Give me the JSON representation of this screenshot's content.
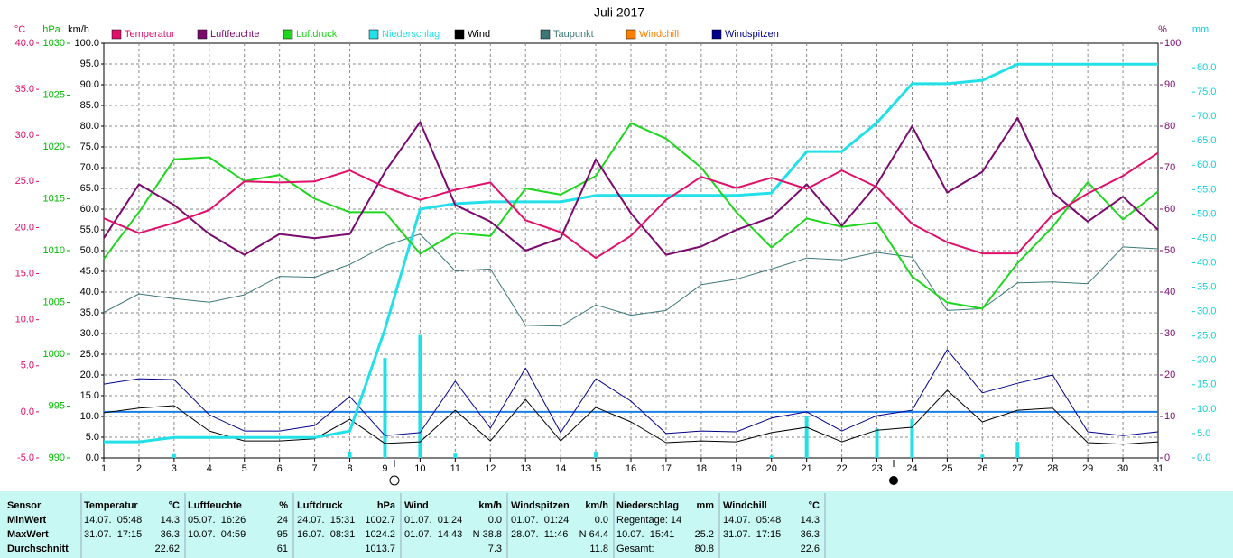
{
  "chart_data": {
    "type": "line",
    "title": "Juli 2017",
    "x": [
      1,
      2,
      3,
      4,
      5,
      6,
      7,
      8,
      9,
      10,
      11,
      12,
      13,
      14,
      15,
      16,
      17,
      18,
      19,
      20,
      21,
      22,
      23,
      24,
      25,
      26,
      27,
      28,
      29,
      30,
      31
    ],
    "xlim": [
      1,
      31
    ],
    "xticks": [
      1,
      2,
      3,
      4,
      5,
      6,
      7,
      8,
      9,
      10,
      11,
      12,
      13,
      14,
      15,
      16,
      17,
      18,
      19,
      20,
      21,
      22,
      23,
      24,
      25,
      26,
      27,
      28,
      29,
      30,
      31
    ],
    "grid": true,
    "axes": {
      "temp": {
        "unit": "°C",
        "color": "#e0106a",
        "side": "left",
        "lim": [
          -5,
          40
        ],
        "ticks": [
          {
            "value": -5,
            "label": "-5.0"
          },
          {
            "value": 0,
            "label": "0.0"
          },
          {
            "value": 5,
            "label": "5.0"
          },
          {
            "value": 10,
            "label": "10.0"
          },
          {
            "value": 15,
            "label": "15.0"
          },
          {
            "value": 20,
            "label": "20.0"
          },
          {
            "value": 25,
            "label": "25.0"
          },
          {
            "value": 30,
            "label": "30.0"
          },
          {
            "value": 35,
            "label": "35.0"
          },
          {
            "value": 40,
            "label": "40.0"
          }
        ]
      },
      "hpa": {
        "unit": "hPa",
        "color": "#00bb00",
        "side": "left",
        "lim": [
          990,
          1030
        ],
        "ticks": [
          990,
          995,
          1000,
          1005,
          1010,
          1015,
          1020,
          1025,
          1030
        ]
      },
      "kmh": {
        "unit": "km/h",
        "color": "#000000",
        "side": "left",
        "lim": [
          0,
          100
        ],
        "ticks": [
          {
            "value": 0,
            "label": "0.0"
          },
          {
            "value": 5,
            "label": "5.0"
          },
          {
            "value": 10,
            "label": "10.0"
          },
          {
            "value": 15,
            "label": "15.0"
          },
          {
            "value": 20,
            "label": "20.0"
          },
          {
            "value": 25,
            "label": "25.0"
          },
          {
            "value": 30,
            "label": "30.0"
          },
          {
            "value": 35,
            "label": "35.0"
          },
          {
            "value": 40,
            "label": "40.0"
          },
          {
            "value": 45,
            "label": "45.0"
          },
          {
            "value": 50,
            "label": "50.0"
          },
          {
            "value": 55,
            "label": "55.0"
          },
          {
            "value": 60,
            "label": "60.0"
          },
          {
            "value": 65,
            "label": "65.0"
          },
          {
            "value": 70,
            "label": "70.0"
          },
          {
            "value": 75,
            "label": "75.0"
          },
          {
            "value": 80,
            "label": "80.0"
          },
          {
            "value": 85,
            "label": "85.0"
          },
          {
            "value": 90,
            "label": "90.0"
          },
          {
            "value": 95,
            "label": "95.0"
          },
          {
            "value": 100,
            "label": "100.0"
          }
        ]
      },
      "pct": {
        "unit": "%",
        "color": "#7a0a6e",
        "side": "right",
        "lim": [
          0,
          100
        ],
        "ticks": [
          0,
          10,
          20,
          30,
          40,
          50,
          60,
          70,
          80,
          90,
          100
        ]
      },
      "mm": {
        "unit": "mm",
        "color": "#10d0d8",
        "side": "right",
        "lim": [
          0,
          85
        ],
        "ticks": [
          {
            "value": 0,
            "label": "0.0"
          },
          {
            "value": 5,
            "label": "5.0"
          },
          {
            "value": 10,
            "label": "10.0"
          },
          {
            "value": 15,
            "label": "15.0"
          },
          {
            "value": 20,
            "label": "20.0"
          },
          {
            "value": 25,
            "label": "25.0"
          },
          {
            "value": 30,
            "label": "30.0"
          },
          {
            "value": 35,
            "label": "35.0"
          },
          {
            "value": 40,
            "label": "40.0"
          },
          {
            "value": 45,
            "label": "45.0"
          },
          {
            "value": 50,
            "label": "50.0"
          },
          {
            "value": 55,
            "label": "55.0"
          },
          {
            "value": 60,
            "label": "60.0"
          },
          {
            "value": 65,
            "label": "65.0"
          },
          {
            "value": 70,
            "label": "70.0"
          },
          {
            "value": 75,
            "label": "75.0"
          },
          {
            "value": 80,
            "label": "80.0"
          }
        ]
      }
    },
    "reference_line": {
      "axis": "temp",
      "value": 0,
      "color": "#1a7fe8"
    },
    "precip_daily": {
      "axis": "mm",
      "color": "#22e0e8",
      "values": [
        0,
        0,
        0.8,
        0,
        0,
        0,
        0,
        1.3,
        20.5,
        25.2,
        0.9,
        0,
        0,
        0,
        1.3,
        0,
        0,
        0,
        0,
        0.5,
        8.5,
        0,
        6,
        8,
        0,
        0.7,
        3.3,
        0,
        0,
        0,
        0
      ]
    },
    "series": [
      {
        "name": "Temperatur",
        "color": "#e0106a",
        "axis": "temp",
        "width": 2,
        "values": [
          21.0,
          19.4,
          20.5,
          21.9,
          25.0,
          24.9,
          25.0,
          26.2,
          24.4,
          23.0,
          24.1,
          24.9,
          20.8,
          19.5,
          16.7,
          19.1,
          23.0,
          25.5,
          24.3,
          25.4,
          24.2,
          26.2,
          24.4,
          20.4,
          18.4,
          17.2,
          17.2,
          21.4,
          23.7,
          25.6,
          28.1
        ]
      },
      {
        "name": "Luftfeuchte",
        "color": "#7a0a6e",
        "axis": "pct",
        "width": 2,
        "values": [
          53,
          66,
          61,
          54,
          49,
          54,
          53,
          54,
          69,
          81,
          61,
          57,
          50,
          53,
          72,
          59,
          49,
          51,
          55,
          58,
          66,
          56,
          66,
          80,
          64,
          69,
          82,
          64,
          57,
          63,
          55
        ]
      },
      {
        "name": "Luftdruck",
        "color": "#1ed61e",
        "axis": "hpa",
        "width": 2,
        "values": [
          1009.2,
          1013.7,
          1018.8,
          1019.0,
          1016.7,
          1017.3,
          1015.0,
          1013.7,
          1013.7,
          1009.7,
          1011.7,
          1011.4,
          1016.0,
          1015.4,
          1017.2,
          1022.3,
          1020.8,
          1018.0,
          1013.7,
          1010.3,
          1013.1,
          1012.3,
          1012.7,
          1007.5,
          1005.0,
          1004.4,
          1008.8,
          1012.3,
          1016.6,
          1013.0,
          1015.7
        ]
      },
      {
        "name": "Niederschlag",
        "color": "#22e0e8",
        "axis": "mm",
        "width": 3,
        "values": [
          3.3,
          3.3,
          4.2,
          4.2,
          4.2,
          4.2,
          4.2,
          5.5,
          26.4,
          51.0,
          52.1,
          52.5,
          52.5,
          52.5,
          53.8,
          53.8,
          53.8,
          53.8,
          53.8,
          54.3,
          62.8,
          62.8,
          68.7,
          76.7,
          76.7,
          77.4,
          80.7,
          80.7,
          80.7,
          80.7,
          80.7
        ]
      },
      {
        "name": "Wind",
        "color": "#000000",
        "axis": "kmh",
        "width": 1,
        "values": [
          10.9,
          12.0,
          12.6,
          6.5,
          4.1,
          4.1,
          4.6,
          9.3,
          3.5,
          3.9,
          11.5,
          4.1,
          14.1,
          4.1,
          12.2,
          8.7,
          3.7,
          4.1,
          3.9,
          6.1,
          7.4,
          3.9,
          6.7,
          7.4,
          16.3,
          8.7,
          11.5,
          12.0,
          3.7,
          3.3,
          3.9
        ]
      },
      {
        "name": "Taupunkt",
        "color": "#3c7878",
        "axis": "temp",
        "width": 1,
        "values": [
          10.8,
          12.8,
          12.3,
          11.9,
          12.7,
          14.7,
          14.6,
          16.0,
          18.0,
          19.3,
          15.3,
          15.5,
          9.4,
          9.3,
          11.6,
          10.5,
          11.0,
          13.8,
          14.4,
          15.5,
          16.7,
          16.5,
          17.3,
          16.8,
          11.0,
          11.2,
          14.0,
          14.1,
          13.9,
          17.9,
          17.7
        ]
      },
      {
        "name": "Windchill",
        "color": "#ff8000",
        "axis": "temp",
        "width": 1,
        "hidden": true,
        "values": [
          21.0,
          19.4,
          20.5,
          21.9,
          25.0,
          24.9,
          25.0,
          26.2,
          24.4,
          23.0,
          24.1,
          24.9,
          20.8,
          19.5,
          16.7,
          19.1,
          23.0,
          25.5,
          24.3,
          25.4,
          24.2,
          26.2,
          24.4,
          20.4,
          18.4,
          17.2,
          17.2,
          21.4,
          23.7,
          25.6,
          28.1
        ]
      },
      {
        "name": "Windspitzen",
        "color": "#00008b",
        "axis": "kmh",
        "width": 1,
        "values": [
          17.8,
          19.1,
          18.9,
          10.4,
          6.5,
          6.5,
          7.8,
          14.8,
          5.4,
          6.1,
          18.5,
          7.2,
          21.7,
          6.1,
          19.1,
          13.7,
          5.9,
          6.5,
          6.3,
          9.6,
          11.1,
          6.5,
          10.2,
          11.5,
          26.1,
          15.7,
          18.0,
          20.0,
          6.3,
          5.4,
          6.3
        ]
      }
    ]
  },
  "table": {
    "rows": [
      [
        {
          "l": "Sensor"
        },
        {
          "l": "Temperatur",
          "r": "°C"
        },
        {
          "l": "Luftfeuchte",
          "r": "%"
        },
        {
          "l": "Luftdruck",
          "r": "hPa"
        },
        {
          "l": "Wind",
          "r": "km/h"
        },
        {
          "l": "Windspitzen",
          "r": "km/h"
        },
        {
          "l": "Niederschlag",
          "r": "mm"
        },
        {
          "l": "Windchill",
          "r": "°C"
        }
      ],
      [
        {
          "l": "MinWert"
        },
        {
          "l": "14.07.  05:48",
          "r": "14.3"
        },
        {
          "l": "05.07.  16:26",
          "r": "24"
        },
        {
          "l": "24.07.  15:31",
          "r": "1002.7"
        },
        {
          "l": "01.07.  01:24",
          "r": "0.0"
        },
        {
          "l": "01.07.  01:24",
          "r": "0.0"
        },
        {
          "l": "Regentage: 14"
        },
        {
          "l": "14.07.  05:48",
          "r": "14.3"
        }
      ],
      [
        {
          "l": "MaxWert"
        },
        {
          "l": "31.07.  17:15",
          "r": "36.3"
        },
        {
          "l": "10.07.  04:59",
          "r": "95"
        },
        {
          "l": "16.07.  08:31",
          "r": "1024.2"
        },
        {
          "l": "01.07.  14:43",
          "r": "N 38.8"
        },
        {
          "l": "28.07.  11:46",
          "r": "N 64.4"
        },
        {
          "l": "10.07.  15:41",
          "r": "25.2"
        },
        {
          "l": "31.07.  17:15",
          "r": "36.3"
        }
      ],
      [
        {
          "l": "Durchschnitt"
        },
        {
          "r": "22.62"
        },
        {
          "r": "61"
        },
        {
          "r": "1013.7"
        },
        {
          "r": "7.3"
        },
        {
          "r": "11.8"
        },
        {
          "l": "Gesamt:",
          "r": "80.8"
        },
        {
          "r": "22.6"
        }
      ]
    ]
  }
}
